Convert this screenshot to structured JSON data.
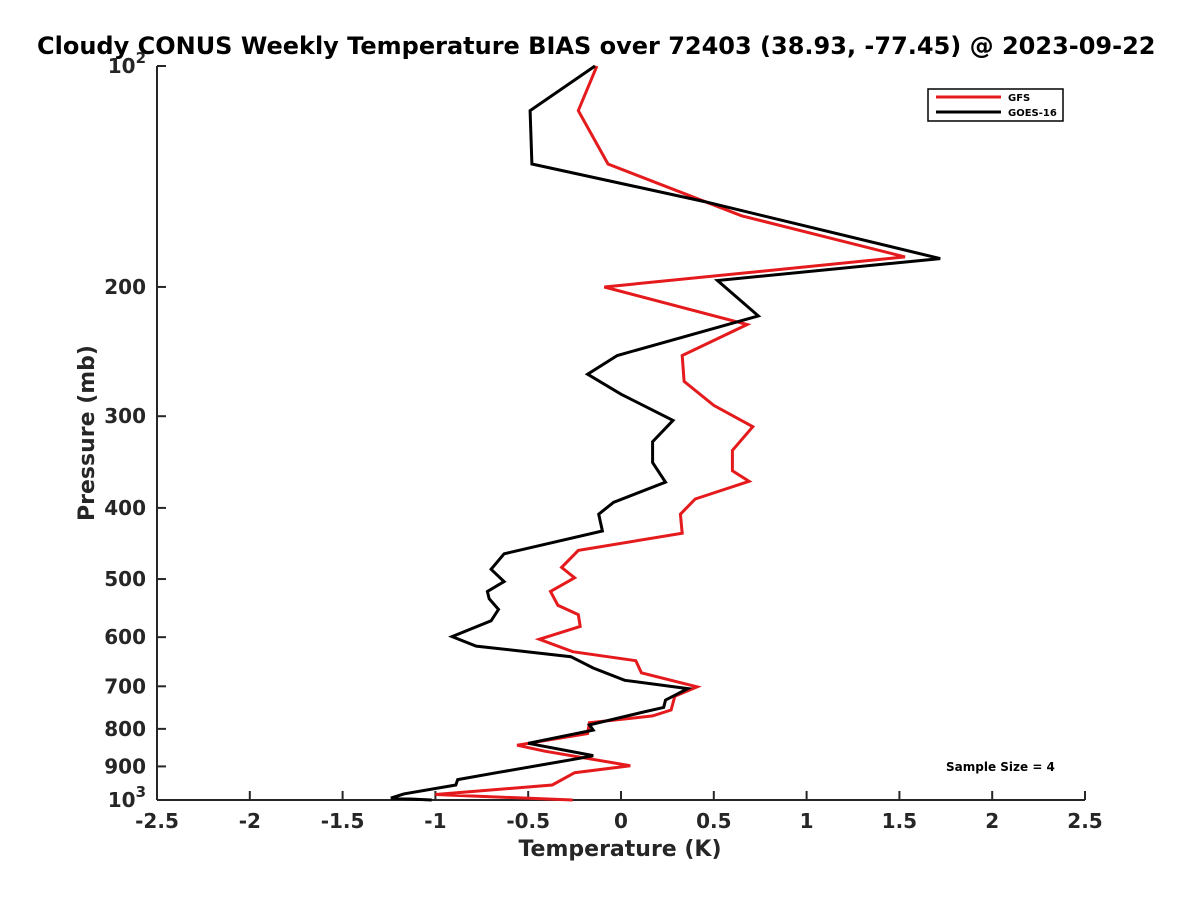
{
  "chart_data": {
    "type": "line",
    "title": "Cloudy CONUS Weekly Temperature BIAS over 72403 (38.93, -77.45) @ 2023-09-22",
    "xlabel": "Temperature (K)",
    "ylabel": "Pressure (mb)",
    "xlim": [
      -2.5,
      2.5
    ],
    "ylim": [
      100,
      1000
    ],
    "y_scale": "log",
    "y_reversed": true,
    "x_ticks": [
      "-2.5",
      "-2",
      "-1.5",
      "-1",
      "-0.5",
      "0",
      "0.5",
      "1",
      "1.5",
      "2",
      "2.5"
    ],
    "y_tick_values": [
      100,
      200,
      300,
      400,
      500,
      600,
      700,
      800,
      900,
      1000
    ],
    "y_ticks": [
      {
        "base": "10",
        "exp": "2"
      },
      {
        "base": "200",
        "exp": ""
      },
      {
        "base": "300",
        "exp": ""
      },
      {
        "base": "400",
        "exp": ""
      },
      {
        "base": "500",
        "exp": ""
      },
      {
        "base": "600",
        "exp": ""
      },
      {
        "base": "700",
        "exp": ""
      },
      {
        "base": "800",
        "exp": ""
      },
      {
        "base": "900",
        "exp": ""
      },
      {
        "base": "10",
        "exp": "3"
      }
    ],
    "legend_position": "top-right",
    "annotation": "Sample Size = 4",
    "series": [
      {
        "name": "GFS",
        "color": "#e41a1c",
        "points": [
          [
            -0.13,
            100
          ],
          [
            -0.23,
            115
          ],
          [
            -0.07,
            136
          ],
          [
            0.65,
            160
          ],
          [
            1.53,
            182
          ],
          [
            -0.09,
            200
          ],
          [
            0.68,
            225
          ],
          [
            0.33,
            248
          ],
          [
            0.34,
            269
          ],
          [
            0.5,
            290
          ],
          [
            0.71,
            310
          ],
          [
            0.6,
            334
          ],
          [
            0.6,
            356
          ],
          [
            0.69,
            368
          ],
          [
            0.4,
            389
          ],
          [
            0.32,
            408
          ],
          [
            0.33,
            433
          ],
          [
            -0.23,
            457
          ],
          [
            -0.32,
            482
          ],
          [
            -0.25,
            498
          ],
          [
            -0.38,
            520
          ],
          [
            -0.34,
            543
          ],
          [
            -0.23,
            559
          ],
          [
            -0.22,
            580
          ],
          [
            -0.44,
            604
          ],
          [
            -0.26,
            628
          ],
          [
            0.08,
            646
          ],
          [
            0.11,
            671
          ],
          [
            0.41,
            701
          ],
          [
            0.29,
            722
          ],
          [
            0.27,
            754
          ],
          [
            0.17,
            768
          ],
          [
            -0.17,
            785
          ],
          [
            -0.18,
            812
          ],
          [
            -0.56,
            842
          ],
          [
            -0.41,
            858
          ],
          [
            0.05,
            898
          ],
          [
            -0.25,
            918
          ],
          [
            -0.37,
            954
          ],
          [
            -1,
            983
          ],
          [
            -0.26,
            1000
          ]
        ]
      },
      {
        "name": "GOES-16",
        "color": "#000000",
        "points": [
          [
            -0.14,
            100
          ],
          [
            -0.49,
            115
          ],
          [
            -0.48,
            136
          ],
          [
            0.45,
            153
          ],
          [
            1.72,
            183
          ],
          [
            0.52,
            196
          ],
          [
            0.74,
            219
          ],
          [
            -0.02,
            248
          ],
          [
            -0.18,
            263
          ],
          [
            0,
            280
          ],
          [
            0.28,
            304
          ],
          [
            0.17,
            325
          ],
          [
            0.17,
            347
          ],
          [
            0.24,
            369
          ],
          [
            -0.04,
            393
          ],
          [
            -0.12,
            408
          ],
          [
            -0.1,
            430
          ],
          [
            -0.63,
            462
          ],
          [
            -0.7,
            485
          ],
          [
            -0.63,
            504
          ],
          [
            -0.72,
            520
          ],
          [
            -0.71,
            532
          ],
          [
            -0.66,
            550
          ],
          [
            -0.7,
            570
          ],
          [
            -0.91,
            599
          ],
          [
            -0.78,
            617
          ],
          [
            -0.27,
            638
          ],
          [
            -0.15,
            661
          ],
          [
            0.02,
            687
          ],
          [
            0.36,
            705
          ],
          [
            0.24,
            731
          ],
          [
            0.23,
            748
          ],
          [
            0.11,
            760
          ],
          [
            -0.17,
            790
          ],
          [
            -0.15,
            803
          ],
          [
            -0.5,
            837
          ],
          [
            -0.15,
            870
          ],
          [
            -0.22,
            877
          ],
          [
            -0.67,
            918
          ],
          [
            -0.88,
            938
          ],
          [
            -0.89,
            954
          ],
          [
            -1.17,
            981
          ],
          [
            -1.24,
            994
          ],
          [
            -1.02,
            1000
          ]
        ]
      }
    ]
  }
}
